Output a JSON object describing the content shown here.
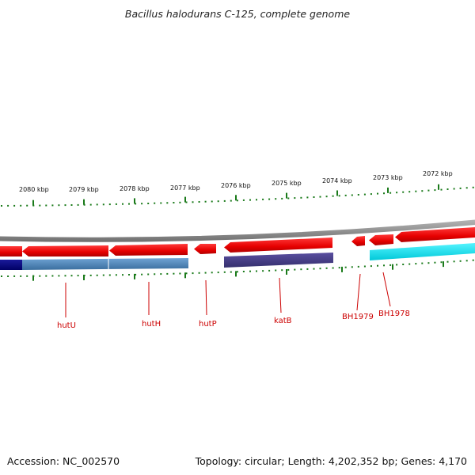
{
  "title": "Bacillus halodurans C-125, complete genome",
  "footer": {
    "accession": "Accession: NC_002570",
    "summary": "Topology: circular; Length: 4,202,352 bp; Genes: 4,170"
  },
  "scale_labels": [
    "2080 kbp",
    "2079 kbp",
    "2078 kbp",
    "2077 kbp",
    "2076 kbp",
    "2075 kbp",
    "2074 kbp",
    "2073 kbp",
    "2072 kbp"
  ],
  "gene_labels": [
    "hutU",
    "hutH",
    "hutP",
    "katB",
    "BH1979",
    "BH1978"
  ],
  "colors": {
    "gene_red": "#ee0000",
    "backbone_gray": "#8a8a8a",
    "tick_green": "#1a7a1a",
    "feature_navy": "#000080",
    "feature_steelblue": "#4682b4",
    "feature_slate": "#483d8b",
    "feature_cyan": "#00e5ee",
    "label_red": "#cc0000"
  }
}
